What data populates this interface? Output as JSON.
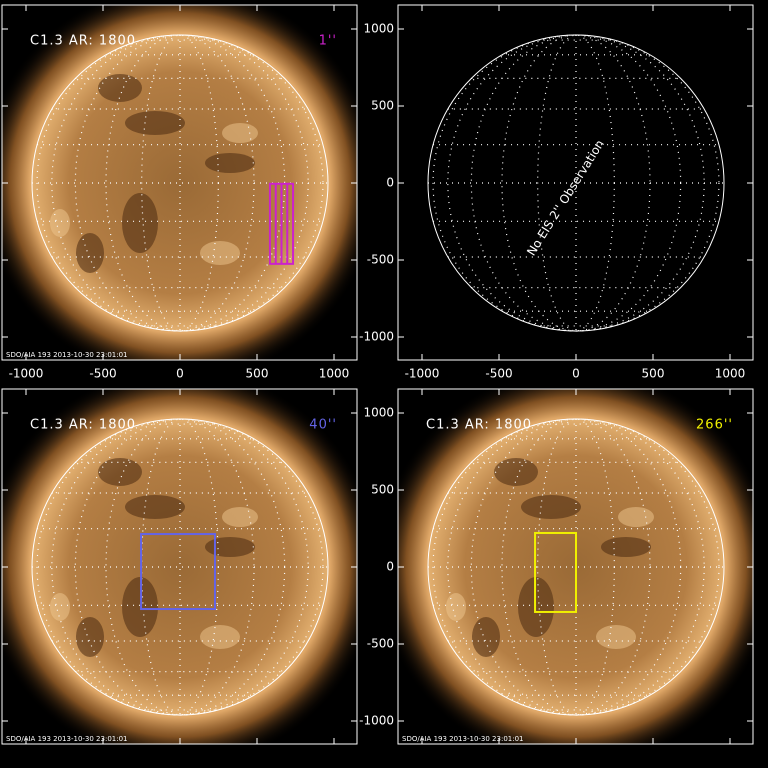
{
  "panels": [
    {
      "label": "C1.3 AR: 1800",
      "width_label": "1''",
      "color": "#cc22cc",
      "box": [
        584,
        734,
        -525,
        -5
      ],
      "footer": "SDO/AIA 193 2013-10-30 23:01:01"
    },
    {
      "note": "No EIS 2'' Observation"
    },
    {
      "label": "C1.3 AR: 1800",
      "width_label": "40''",
      "color": "#6464e6",
      "box": [
        -253,
        227,
        -273,
        214
      ],
      "footer": "SDO/AIA 193 2013-10-30 23:01:01"
    },
    {
      "label": "C1.3 AR: 1800",
      "width_label": "266''",
      "color": "#f0f000",
      "box": [
        -266,
        0,
        -292,
        221
      ],
      "footer": "SDO/AIA 193 2013-10-30 23:01:01"
    }
  ],
  "xticks": [
    -1000,
    -500,
    0,
    500,
    1000
  ],
  "yticks": [
    -1000,
    -500,
    0,
    500,
    1000
  ]
}
